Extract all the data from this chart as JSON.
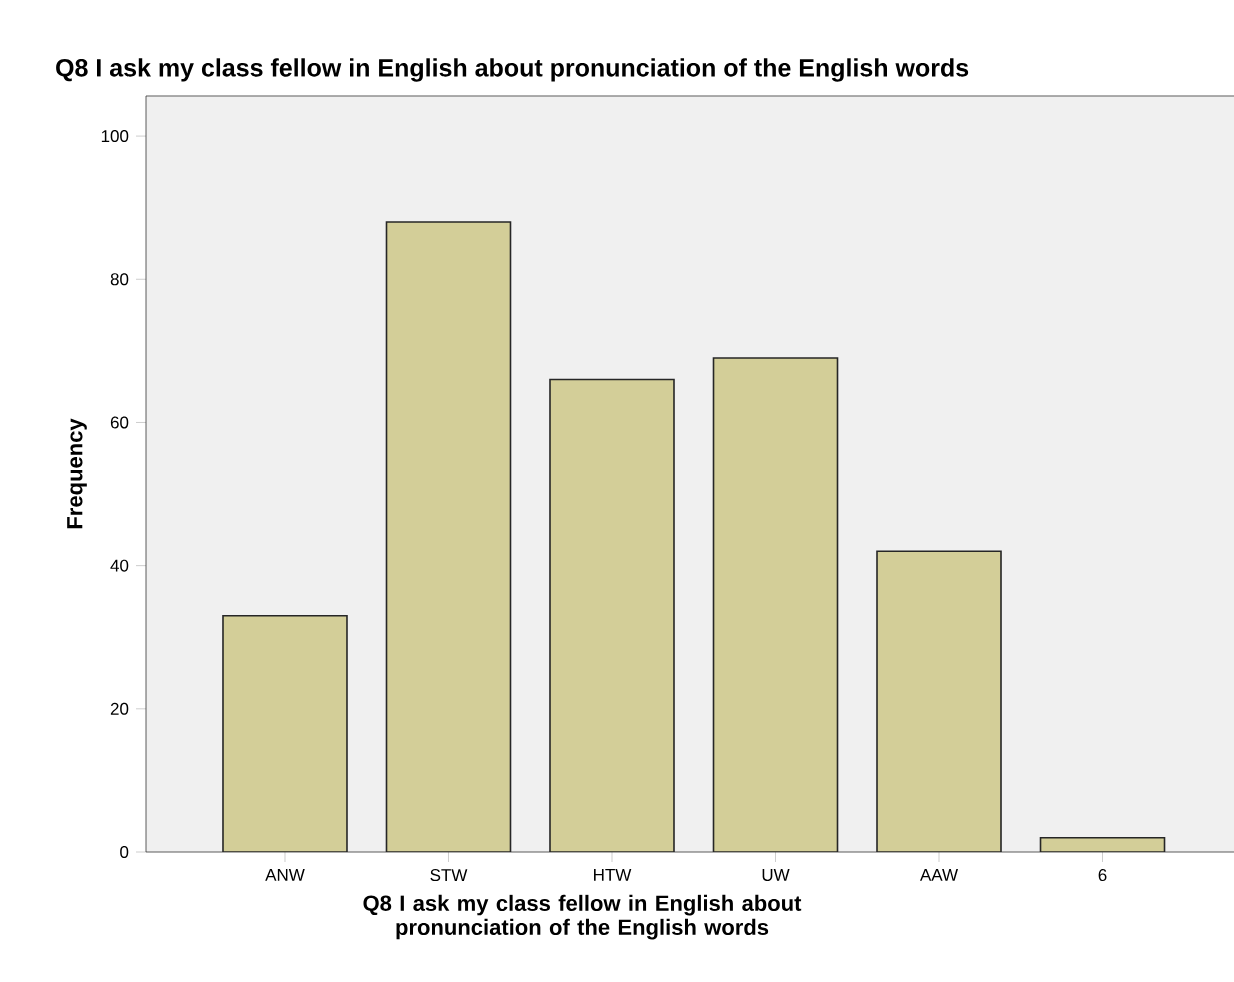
{
  "chart_data": {
    "type": "bar",
    "title": "Q8  I ask my class fellow in English about  pronunciation of  the English words",
    "xlabel": "Q8  I ask my class fellow in English about  pronunciation of  the English words",
    "ylabel": "Frequency",
    "categories": [
      "ANW",
      "STW",
      "HTW",
      "UW",
      "AAW",
      "6"
    ],
    "values": [
      33,
      88,
      66,
      69,
      42,
      2
    ],
    "color": "#d3ce98",
    "ylim": [
      0,
      105.6
    ],
    "yticks": [
      0,
      20,
      40,
      60,
      80,
      100
    ],
    "grid": false
  }
}
